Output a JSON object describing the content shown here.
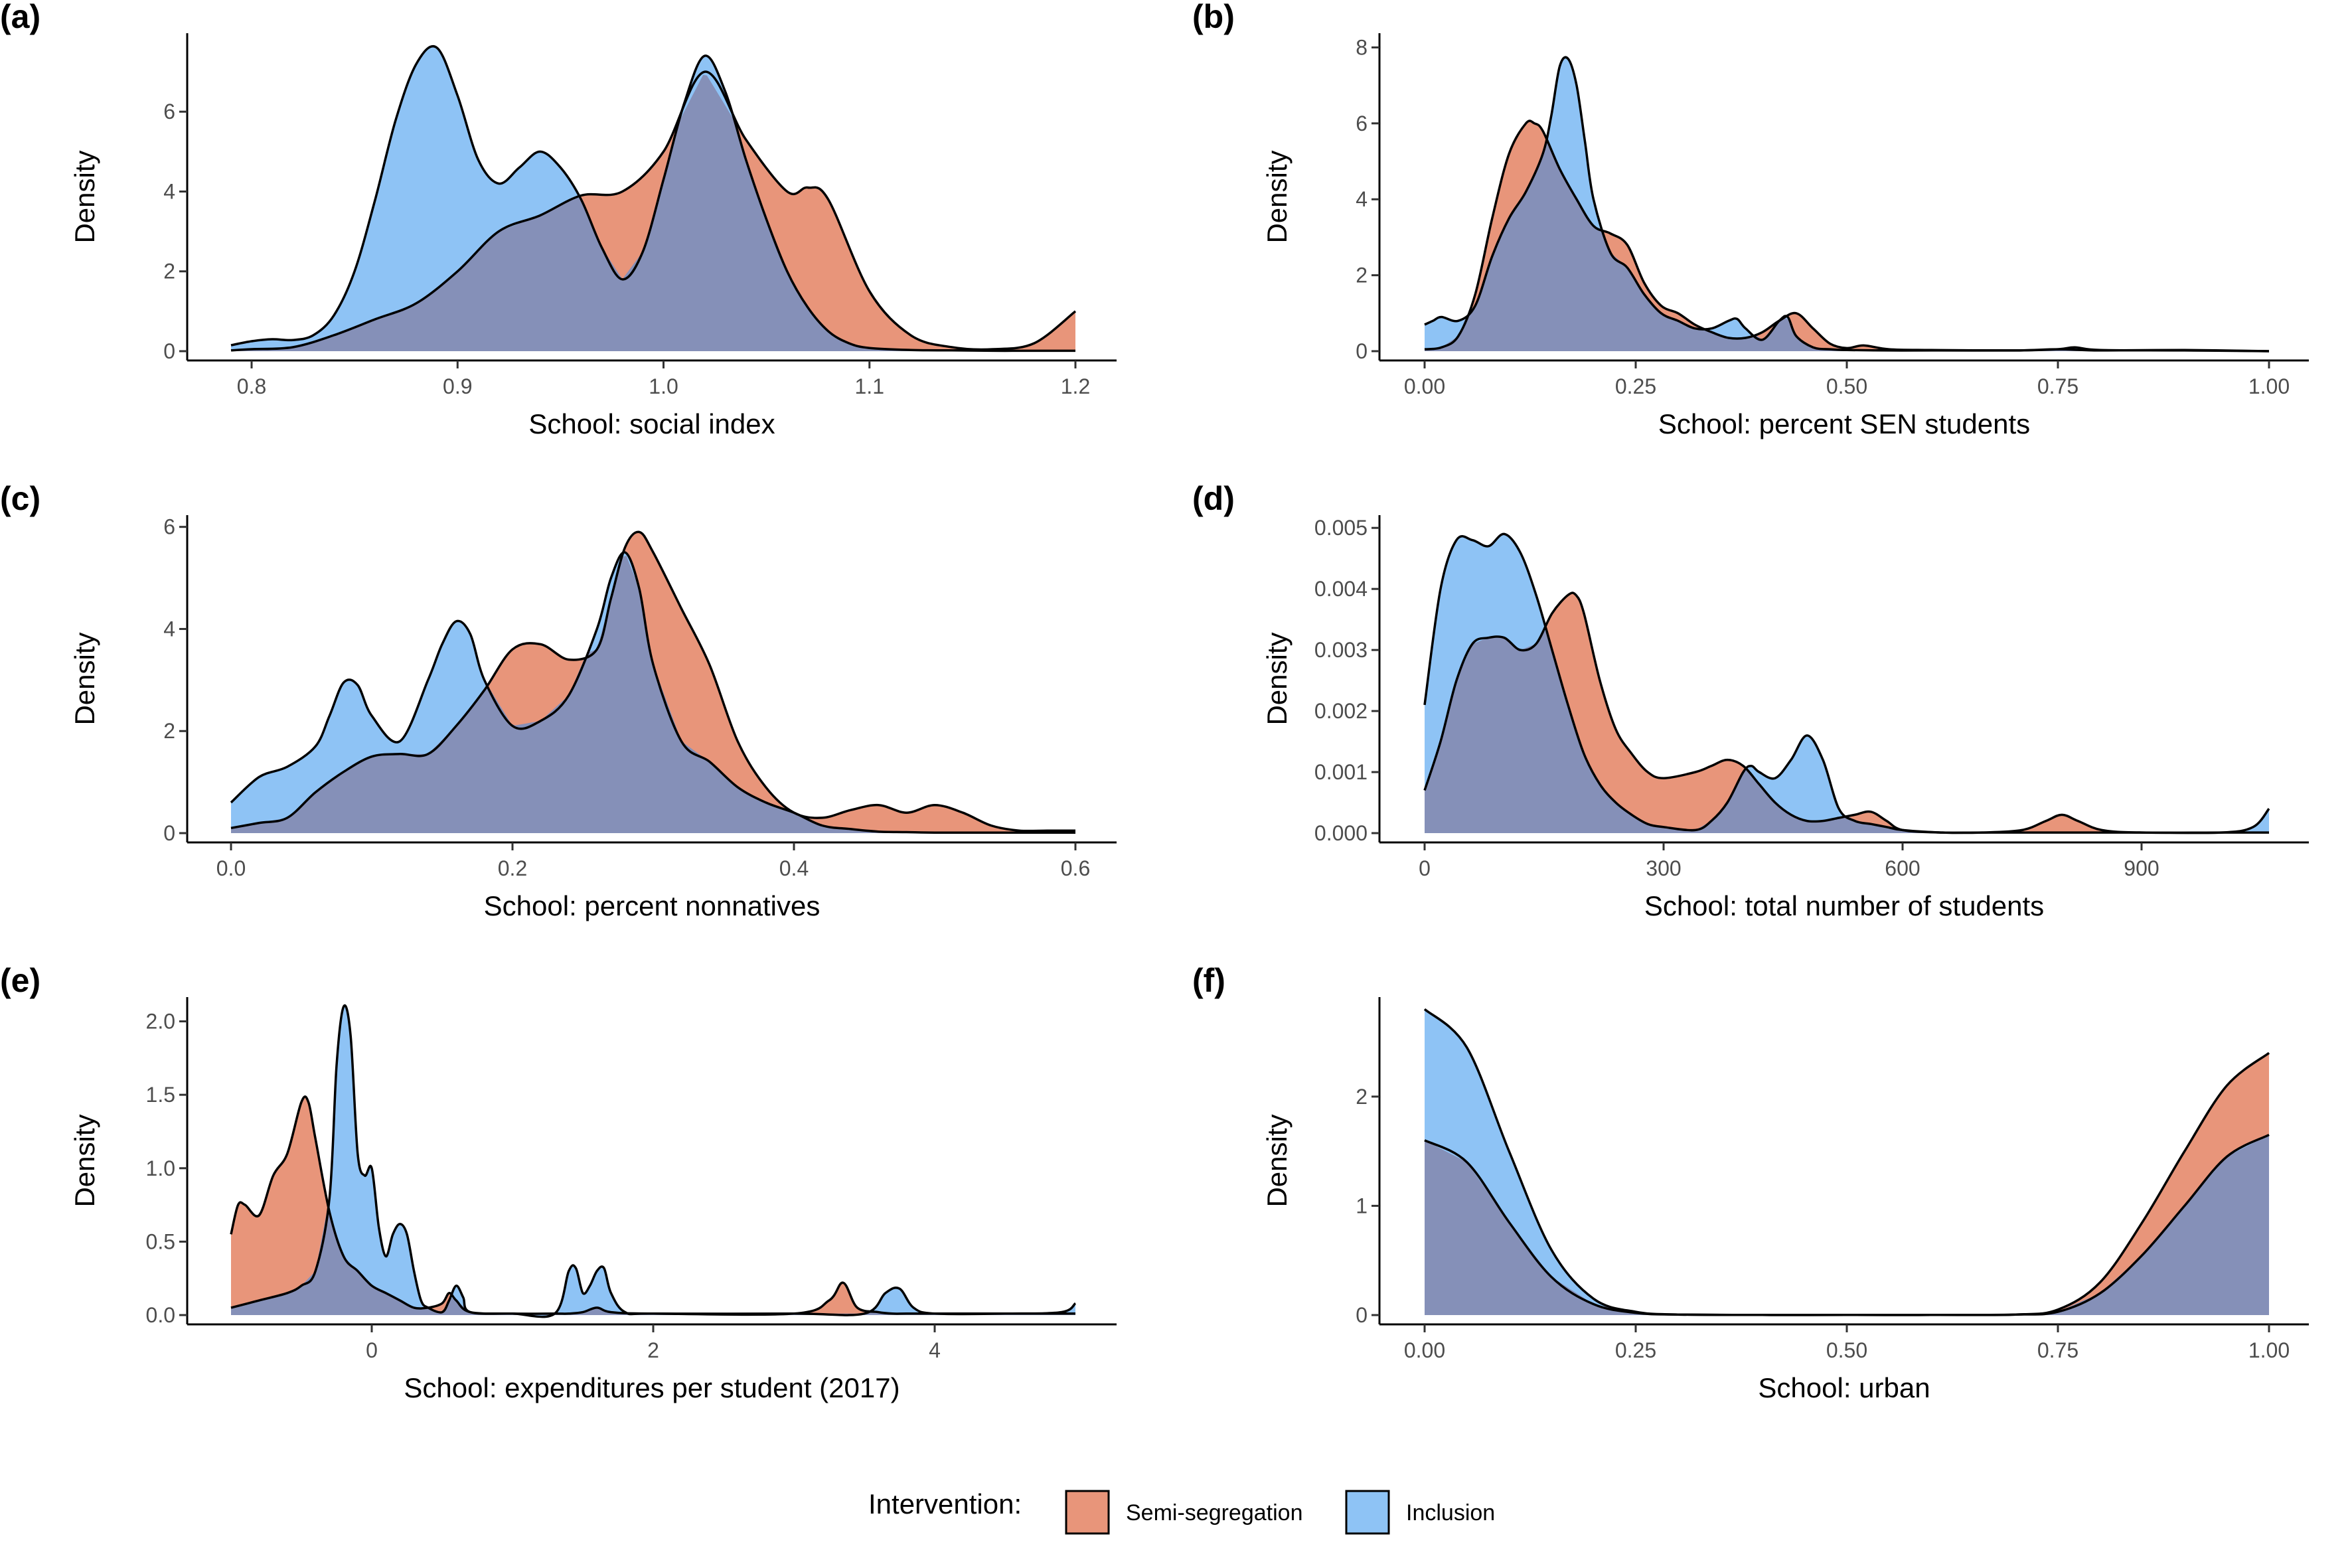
{
  "figure": {
    "legend_title": "Intervention:",
    "colors": {
      "Semi-segregation": "#E8957A",
      "Inclusion": "#8EC3F5",
      "overlap": "#8590B8"
    }
  },
  "chart_data": [
    {
      "panel": "(a)",
      "type": "area",
      "xlabel": "School: social index",
      "ylabel": "Density",
      "xlim": [
        0.79,
        1.2
      ],
      "ylim": [
        0,
        7.8
      ],
      "xticks": [
        0.8,
        0.9,
        1.0,
        1.1,
        1.2
      ],
      "xtick_labels": [
        "0.8",
        "0.9",
        "1.0",
        "1.1",
        "1.2"
      ],
      "yticks": [
        0,
        2,
        4,
        6
      ],
      "ytick_labels": [
        "0",
        "2",
        "4",
        "6"
      ],
      "series": [
        {
          "name": "Semi-segregation",
          "x": [
            0.79,
            0.8,
            0.82,
            0.84,
            0.86,
            0.88,
            0.9,
            0.92,
            0.94,
            0.96,
            0.98,
            1.0,
            1.02,
            1.04,
            1.06,
            1.07,
            1.08,
            1.1,
            1.12,
            1.14,
            1.16,
            1.18,
            1.2
          ],
          "y": [
            0.02,
            0.05,
            0.1,
            0.4,
            0.8,
            1.2,
            2.0,
            3.0,
            3.4,
            3.9,
            4.0,
            5.0,
            7.0,
            5.3,
            4.0,
            4.1,
            3.8,
            1.5,
            0.4,
            0.1,
            0.05,
            0.2,
            1.0
          ]
        },
        {
          "name": "Inclusion",
          "x": [
            0.79,
            0.8,
            0.81,
            0.82,
            0.83,
            0.84,
            0.85,
            0.86,
            0.87,
            0.88,
            0.89,
            0.9,
            0.91,
            0.92,
            0.93,
            0.94,
            0.95,
            0.96,
            0.97,
            0.98,
            0.99,
            1.0,
            1.01,
            1.02,
            1.03,
            1.04,
            1.05,
            1.06,
            1.07,
            1.08,
            1.09,
            1.1,
            1.12,
            1.14,
            1.16,
            1.18,
            1.2
          ],
          "y": [
            0.15,
            0.25,
            0.3,
            0.28,
            0.4,
            0.9,
            2.0,
            3.8,
            5.8,
            7.2,
            7.6,
            6.4,
            4.8,
            4.2,
            4.6,
            5.0,
            4.6,
            3.8,
            2.6,
            1.8,
            2.5,
            4.3,
            6.2,
            7.4,
            6.5,
            4.8,
            3.3,
            2.0,
            1.1,
            0.5,
            0.2,
            0.08,
            0.03,
            0.02,
            0.01,
            0.01,
            0.01
          ]
        }
      ]
    },
    {
      "panel": "(b)",
      "type": "area",
      "xlabel": "School: percent SEN students",
      "ylabel": "Density",
      "xlim": [
        0,
        1.0
      ],
      "ylim": [
        0,
        8.2
      ],
      "xticks": [
        0,
        0.25,
        0.5,
        0.75,
        1.0
      ],
      "xtick_labels": [
        "0.00",
        "0.25",
        "0.50",
        "0.75",
        "1.00"
      ],
      "yticks": [
        0,
        2,
        4,
        6,
        8
      ],
      "ytick_labels": [
        "0",
        "2",
        "4",
        "6",
        "8"
      ],
      "series": [
        {
          "name": "Semi-segregation",
          "x": [
            0,
            0.02,
            0.04,
            0.06,
            0.08,
            0.1,
            0.12,
            0.13,
            0.14,
            0.16,
            0.18,
            0.2,
            0.22,
            0.24,
            0.26,
            0.28,
            0.3,
            0.32,
            0.34,
            0.36,
            0.38,
            0.4,
            0.42,
            0.44,
            0.46,
            0.48,
            0.5,
            0.52,
            0.55,
            0.6,
            0.7,
            0.75,
            0.8,
            0.9,
            1.0
          ],
          "y": [
            0.05,
            0.1,
            0.4,
            1.5,
            3.5,
            5.2,
            6.0,
            6.0,
            5.8,
            4.8,
            4.0,
            3.3,
            3.1,
            2.8,
            1.8,
            1.2,
            1.0,
            0.7,
            0.5,
            0.35,
            0.35,
            0.5,
            0.8,
            1.0,
            0.6,
            0.2,
            0.08,
            0.15,
            0.05,
            0.03,
            0.02,
            0.05,
            0.02,
            0.03,
            0.0
          ]
        },
        {
          "name": "Inclusion",
          "x": [
            0,
            0.01,
            0.02,
            0.04,
            0.06,
            0.08,
            0.1,
            0.12,
            0.14,
            0.15,
            0.16,
            0.17,
            0.18,
            0.19,
            0.2,
            0.22,
            0.24,
            0.26,
            0.28,
            0.3,
            0.32,
            0.34,
            0.36,
            0.37,
            0.38,
            0.4,
            0.42,
            0.43,
            0.44,
            0.46,
            0.48,
            0.5,
            0.55,
            0.6,
            0.7,
            0.75,
            0.77,
            0.8,
            0.9,
            1.0
          ],
          "y": [
            0.7,
            0.8,
            0.9,
            0.8,
            1.2,
            2.5,
            3.5,
            4.2,
            5.2,
            6.2,
            7.5,
            7.7,
            7.0,
            5.5,
            4.0,
            2.6,
            2.2,
            1.5,
            1.0,
            0.8,
            0.6,
            0.6,
            0.8,
            0.85,
            0.6,
            0.3,
            0.8,
            0.9,
            0.4,
            0.1,
            0.05,
            0.03,
            0.02,
            0.02,
            0.02,
            0.05,
            0.1,
            0.03,
            0.02,
            0.0
          ]
        }
      ]
    },
    {
      "panel": "(c)",
      "type": "area",
      "xlabel": "School: percent nonnatives",
      "ylabel": "Density",
      "xlim": [
        0,
        0.6
      ],
      "ylim": [
        0,
        6.1
      ],
      "xticks": [
        0,
        0.2,
        0.4,
        0.6
      ],
      "xtick_labels": [
        "0.0",
        "0.2",
        "0.4",
        "0.6"
      ],
      "yticks": [
        0,
        2,
        4,
        6
      ],
      "ytick_labels": [
        "0",
        "2",
        "4",
        "6"
      ],
      "series": [
        {
          "name": "Semi-segregation",
          "x": [
            0,
            0.02,
            0.04,
            0.06,
            0.08,
            0.1,
            0.12,
            0.14,
            0.16,
            0.18,
            0.2,
            0.22,
            0.24,
            0.26,
            0.27,
            0.28,
            0.29,
            0.3,
            0.32,
            0.34,
            0.36,
            0.38,
            0.4,
            0.42,
            0.44,
            0.46,
            0.48,
            0.5,
            0.52,
            0.54,
            0.56,
            0.58,
            0.6
          ],
          "y": [
            0.1,
            0.2,
            0.3,
            0.8,
            1.2,
            1.5,
            1.55,
            1.55,
            2.1,
            2.8,
            3.6,
            3.7,
            3.4,
            3.6,
            4.6,
            5.6,
            5.9,
            5.5,
            4.4,
            3.3,
            1.8,
            0.9,
            0.4,
            0.3,
            0.45,
            0.55,
            0.4,
            0.55,
            0.4,
            0.15,
            0.05,
            0.05,
            0.05
          ]
        },
        {
          "name": "Inclusion",
          "x": [
            0,
            0.02,
            0.04,
            0.06,
            0.07,
            0.08,
            0.09,
            0.1,
            0.12,
            0.14,
            0.15,
            0.16,
            0.17,
            0.18,
            0.2,
            0.22,
            0.24,
            0.26,
            0.27,
            0.28,
            0.29,
            0.3,
            0.32,
            0.34,
            0.36,
            0.38,
            0.4,
            0.42,
            0.44,
            0.46,
            0.48,
            0.5,
            0.55,
            0.6
          ],
          "y": [
            0.6,
            1.1,
            1.3,
            1.7,
            2.3,
            2.95,
            2.9,
            2.3,
            1.8,
            3.0,
            3.7,
            4.15,
            3.9,
            3.0,
            2.1,
            2.2,
            2.7,
            4.0,
            5.0,
            5.5,
            4.8,
            3.3,
            1.8,
            1.4,
            0.9,
            0.6,
            0.4,
            0.15,
            0.08,
            0.03,
            0.02,
            0.01,
            0.01,
            0.01
          ]
        }
      ]
    },
    {
      "panel": "(d)",
      "type": "area",
      "xlabel": "School: total number of students",
      "ylabel": "Density",
      "xlim": [
        0,
        1060
      ],
      "ylim": [
        0,
        0.0051
      ],
      "xticks": [
        0,
        300,
        600,
        900
      ],
      "xtick_labels": [
        "0",
        "300",
        "600",
        "900"
      ],
      "yticks": [
        0,
        0.001,
        0.002,
        0.003,
        0.004,
        0.005
      ],
      "ytick_labels": [
        "0.000",
        "0.001",
        "0.002",
        "0.003",
        "0.004",
        "0.005"
      ],
      "series": [
        {
          "name": "Semi-segregation",
          "x": [
            0,
            20,
            40,
            60,
            80,
            100,
            120,
            140,
            160,
            180,
            190,
            200,
            220,
            240,
            260,
            280,
            300,
            340,
            360,
            380,
            400,
            420,
            440,
            460,
            480,
            500,
            520,
            540,
            560,
            580,
            600,
            650,
            700,
            750,
            780,
            800,
            820,
            850,
            900,
            1000,
            1060
          ],
          "y": [
            0.0007,
            0.0015,
            0.0025,
            0.0031,
            0.0032,
            0.0032,
            0.003,
            0.0031,
            0.0036,
            0.0039,
            0.0039,
            0.0036,
            0.0025,
            0.0017,
            0.0013,
            0.001,
            0.0009,
            0.001,
            0.0011,
            0.0012,
            0.0011,
            0.0008,
            0.0005,
            0.0003,
            0.0002,
            0.0002,
            0.00025,
            0.0003,
            0.00035,
            0.0002,
            5e-05,
            1e-05,
            1e-05,
            5e-05,
            0.0002,
            0.0003,
            0.0002,
            5e-05,
            1e-05,
            1e-05,
            1e-05
          ]
        },
        {
          "name": "Inclusion",
          "x": [
            0,
            20,
            40,
            60,
            80,
            100,
            120,
            140,
            160,
            180,
            200,
            220,
            240,
            260,
            280,
            300,
            340,
            360,
            380,
            400,
            410,
            420,
            440,
            460,
            480,
            500,
            520,
            540,
            560,
            580,
            600,
            650,
            700,
            800,
            900,
            1000,
            1040,
            1060
          ],
          "y": [
            0.0021,
            0.004,
            0.0048,
            0.0048,
            0.0047,
            0.0049,
            0.0046,
            0.0039,
            0.003,
            0.0021,
            0.0013,
            0.0008,
            0.0005,
            0.0003,
            0.00015,
            0.0001,
            5e-05,
            0.0002,
            0.0005,
            0.001,
            0.0011,
            0.001,
            0.0009,
            0.0012,
            0.0016,
            0.0012,
            0.0004,
            0.0002,
            0.00015,
            0.0001,
            5e-05,
            1e-05,
            1e-05,
            1e-05,
            1e-05,
            1e-05,
            0.0001,
            0.0004
          ]
        }
      ]
    },
    {
      "panel": "(e)",
      "type": "area",
      "xlabel": "School: expenditures per student (2017)",
      "ylabel": "Density",
      "xlim": [
        -1.0,
        5.0
      ],
      "ylim": [
        0,
        2.12
      ],
      "xticks": [
        0,
        2,
        4
      ],
      "xtick_labels": [
        "0",
        "2",
        "4"
      ],
      "yticks": [
        0,
        0.5,
        1.0,
        1.5,
        2.0
      ],
      "ytick_labels": [
        "0.0",
        "0.5",
        "1.0",
        "1.5",
        "2.0"
      ],
      "series": [
        {
          "name": "Semi-segregation",
          "x": [
            -1.0,
            -0.95,
            -0.9,
            -0.8,
            -0.7,
            -0.6,
            -0.5,
            -0.45,
            -0.4,
            -0.3,
            -0.2,
            -0.1,
            0.0,
            0.1,
            0.2,
            0.3,
            0.4,
            0.5,
            0.55,
            0.6,
            0.7,
            1.0,
            1.3,
            1.4,
            1.5,
            1.6,
            1.7,
            2.0,
            3.0,
            3.25,
            3.35,
            3.45,
            3.6,
            3.7,
            3.8,
            4.0,
            5.0
          ],
          "y": [
            0.55,
            0.75,
            0.75,
            0.68,
            0.95,
            1.1,
            1.45,
            1.45,
            1.2,
            0.7,
            0.4,
            0.3,
            0.2,
            0.15,
            0.1,
            0.05,
            0.05,
            0.08,
            0.15,
            0.1,
            0.02,
            0.01,
            0.01,
            0.01,
            0.02,
            0.05,
            0.02,
            0.01,
            0.01,
            0.1,
            0.22,
            0.05,
            0.02,
            0.01,
            0.01,
            0.01,
            0.01
          ]
        },
        {
          "name": "Inclusion",
          "x": [
            -1.0,
            -0.8,
            -0.6,
            -0.5,
            -0.4,
            -0.3,
            -0.25,
            -0.2,
            -0.15,
            -0.1,
            -0.05,
            0.0,
            0.05,
            0.1,
            0.15,
            0.2,
            0.25,
            0.3,
            0.35,
            0.4,
            0.5,
            0.55,
            0.6,
            0.65,
            0.7,
            1.0,
            1.3,
            1.4,
            1.45,
            1.5,
            1.55,
            1.6,
            1.65,
            1.7,
            1.8,
            2.0,
            3.0,
            3.5,
            3.65,
            3.75,
            3.85,
            4.0,
            4.5,
            4.9,
            5.0
          ],
          "y": [
            0.05,
            0.1,
            0.15,
            0.2,
            0.3,
            0.8,
            1.7,
            2.1,
            1.9,
            1.1,
            0.95,
            1.0,
            0.6,
            0.4,
            0.55,
            0.62,
            0.55,
            0.3,
            0.1,
            0.05,
            0.02,
            0.1,
            0.2,
            0.12,
            0.02,
            0.01,
            0.01,
            0.3,
            0.32,
            0.15,
            0.2,
            0.3,
            0.32,
            0.15,
            0.02,
            0.01,
            0.01,
            0.01,
            0.15,
            0.18,
            0.05,
            0.01,
            0.01,
            0.02,
            0.08
          ]
        }
      ]
    },
    {
      "panel": "(f)",
      "type": "area",
      "xlabel": "School: urban",
      "ylabel": "Density",
      "xlim": [
        0,
        1.0
      ],
      "ylim": [
        0,
        2.85
      ],
      "xticks": [
        0,
        0.25,
        0.5,
        0.75,
        1.0
      ],
      "xtick_labels": [
        "0.00",
        "0.25",
        "0.50",
        "0.75",
        "1.00"
      ],
      "yticks": [
        0,
        1,
        2
      ],
      "ytick_labels": [
        "0",
        "1",
        "2"
      ],
      "series": [
        {
          "name": "Semi-segregation",
          "x": [
            0,
            0.05,
            0.1,
            0.15,
            0.2,
            0.25,
            0.3,
            0.4,
            0.5,
            0.6,
            0.7,
            0.75,
            0.8,
            0.85,
            0.9,
            0.95,
            1.0
          ],
          "y": [
            1.6,
            1.4,
            0.85,
            0.35,
            0.1,
            0.02,
            0.005,
            0.001,
            0.001,
            0.001,
            0.005,
            0.05,
            0.3,
            0.85,
            1.5,
            2.1,
            2.4
          ]
        },
        {
          "name": "Inclusion",
          "x": [
            0,
            0.05,
            0.1,
            0.15,
            0.2,
            0.25,
            0.3,
            0.4,
            0.5,
            0.6,
            0.7,
            0.75,
            0.8,
            0.85,
            0.9,
            0.95,
            1.0
          ],
          "y": [
            2.8,
            2.45,
            1.5,
            0.6,
            0.15,
            0.03,
            0.005,
            0.001,
            0.001,
            0.001,
            0.005,
            0.03,
            0.2,
            0.55,
            1.0,
            1.45,
            1.65
          ]
        }
      ]
    }
  ]
}
